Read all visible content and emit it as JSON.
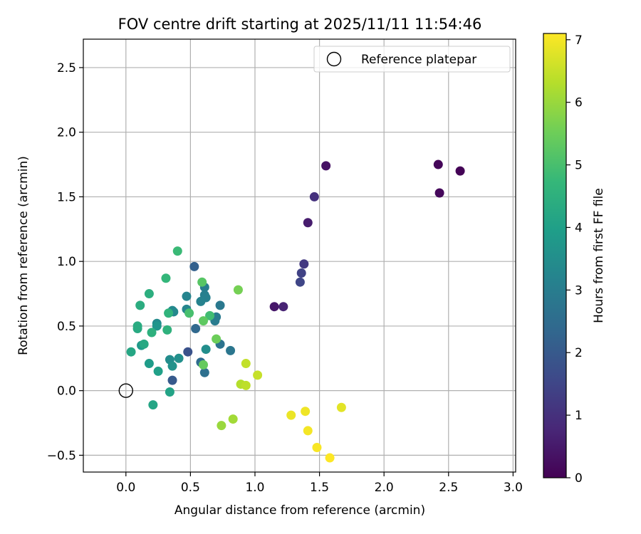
{
  "chart_data": {
    "type": "scatter",
    "title": "FOV centre drift starting at 2025/11/11 11:54:46",
    "xlabel": "Angular distance from reference (arcmin)",
    "ylabel": "Rotation from reference (arcmin)",
    "xlim": [
      -0.33,
      3.02
    ],
    "ylim": [
      -0.63,
      2.72
    ],
    "xticks": [
      0.0,
      0.5,
      1.0,
      1.5,
      2.0,
      2.5,
      3.0
    ],
    "xtick_labels": [
      "0.0",
      "0.5",
      "1.0",
      "1.5",
      "2.0",
      "2.5",
      "3.0"
    ],
    "yticks": [
      -0.5,
      0.0,
      0.5,
      1.0,
      1.5,
      2.0,
      2.5
    ],
    "ytick_labels": [
      "−0.5",
      "0.0",
      "0.5",
      "1.0",
      "1.5",
      "2.0",
      "2.5"
    ],
    "grid": true,
    "legend": {
      "position": "top-right",
      "entries": [
        "Reference platepar"
      ]
    },
    "reference_point": {
      "x": 0.0,
      "y": 0.0,
      "label": "Reference platepar"
    },
    "colorbar": {
      "label": "Hours from first FF file",
      "range": [
        0,
        7.1
      ],
      "ticks": [
        0,
        1,
        2,
        3,
        4,
        5,
        6,
        7
      ],
      "tick_labels": [
        "0",
        "1",
        "2",
        "3",
        "4",
        "5",
        "6",
        "7"
      ],
      "colormap": [
        "#440154",
        "#482878",
        "#3e4989",
        "#31688e",
        "#26828e",
        "#1f9e89",
        "#35b779",
        "#6ece58",
        "#b5de2b",
        "#fde725"
      ]
    },
    "points": [
      {
        "x": 2.59,
        "y": 1.7,
        "c": 0.05
      },
      {
        "x": 2.42,
        "y": 1.75,
        "c": 0.1
      },
      {
        "x": 2.43,
        "y": 1.53,
        "c": 0.15
      },
      {
        "x": 1.55,
        "y": 1.74,
        "c": 0.35
      },
      {
        "x": 1.15,
        "y": 0.65,
        "c": 0.45
      },
      {
        "x": 1.41,
        "y": 1.3,
        "c": 0.55
      },
      {
        "x": 1.22,
        "y": 0.65,
        "c": 0.7
      },
      {
        "x": 1.46,
        "y": 1.5,
        "c": 1.0
      },
      {
        "x": 1.38,
        "y": 0.98,
        "c": 1.2
      },
      {
        "x": 1.36,
        "y": 0.91,
        "c": 1.4
      },
      {
        "x": 1.35,
        "y": 0.84,
        "c": 1.5
      },
      {
        "x": 0.48,
        "y": 0.3,
        "c": 1.8
      },
      {
        "x": 0.36,
        "y": 0.08,
        "c": 2.0
      },
      {
        "x": 0.53,
        "y": 0.96,
        "c": 2.2
      },
      {
        "x": 0.54,
        "y": 0.48,
        "c": 2.4
      },
      {
        "x": 0.58,
        "y": 0.22,
        "c": 2.5
      },
      {
        "x": 0.61,
        "y": 0.14,
        "c": 2.6
      },
      {
        "x": 0.73,
        "y": 0.36,
        "c": 2.7
      },
      {
        "x": 0.81,
        "y": 0.31,
        "c": 2.8
      },
      {
        "x": 0.73,
        "y": 0.66,
        "c": 2.85
      },
      {
        "x": 0.7,
        "y": 0.57,
        "c": 2.9
      },
      {
        "x": 0.69,
        "y": 0.54,
        "c": 2.95
      },
      {
        "x": 0.61,
        "y": 0.8,
        "c": 3.0
      },
      {
        "x": 0.61,
        "y": 0.74,
        "c": 3.05
      },
      {
        "x": 0.62,
        "y": 0.72,
        "c": 3.1
      },
      {
        "x": 0.58,
        "y": 0.69,
        "c": 3.15
      },
      {
        "x": 0.47,
        "y": 0.73,
        "c": 3.2
      },
      {
        "x": 0.47,
        "y": 0.63,
        "c": 3.25
      },
      {
        "x": 0.37,
        "y": 0.61,
        "c": 3.3
      },
      {
        "x": 0.36,
        "y": 0.62,
        "c": 3.35
      },
      {
        "x": 0.24,
        "y": 0.52,
        "c": 3.4
      },
      {
        "x": 0.34,
        "y": 0.24,
        "c": 3.45
      },
      {
        "x": 0.62,
        "y": 0.32,
        "c": 3.5
      },
      {
        "x": 0.41,
        "y": 0.25,
        "c": 3.55
      },
      {
        "x": 0.36,
        "y": 0.19,
        "c": 3.6
      },
      {
        "x": 0.24,
        "y": 0.5,
        "c": 3.7
      },
      {
        "x": 0.12,
        "y": 0.35,
        "c": 3.8
      },
      {
        "x": 0.18,
        "y": 0.21,
        "c": 3.9
      },
      {
        "x": 0.25,
        "y": 0.15,
        "c": 4.0
      },
      {
        "x": 0.34,
        "y": -0.01,
        "c": 4.1
      },
      {
        "x": 0.21,
        "y": -0.11,
        "c": 4.15
      },
      {
        "x": 0.04,
        "y": 0.3,
        "c": 4.2
      },
      {
        "x": 0.14,
        "y": 0.36,
        "c": 4.25
      },
      {
        "x": 0.09,
        "y": 0.48,
        "c": 4.3
      },
      {
        "x": 0.09,
        "y": 0.5,
        "c": 4.35
      },
      {
        "x": 0.11,
        "y": 0.66,
        "c": 4.4
      },
      {
        "x": 0.18,
        "y": 0.75,
        "c": 4.45
      },
      {
        "x": 0.2,
        "y": 0.45,
        "c": 4.5
      },
      {
        "x": 0.32,
        "y": 0.47,
        "c": 4.55
      },
      {
        "x": 0.33,
        "y": 0.6,
        "c": 4.6
      },
      {
        "x": 0.31,
        "y": 0.87,
        "c": 4.7
      },
      {
        "x": 0.4,
        "y": 1.08,
        "c": 4.8
      },
      {
        "x": 0.65,
        "y": 0.58,
        "c": 4.9
      },
      {
        "x": 0.49,
        "y": 0.6,
        "c": 5.0
      },
      {
        "x": 0.59,
        "y": 0.84,
        "c": 5.2
      },
      {
        "x": 0.6,
        "y": 0.54,
        "c": 5.3
      },
      {
        "x": 0.6,
        "y": 0.2,
        "c": 5.4
      },
      {
        "x": 0.7,
        "y": 0.4,
        "c": 5.5
      },
      {
        "x": 0.87,
        "y": 0.78,
        "c": 5.6
      },
      {
        "x": 0.74,
        "y": -0.27,
        "c": 6.0
      },
      {
        "x": 0.83,
        "y": -0.22,
        "c": 6.1
      },
      {
        "x": 0.89,
        "y": 0.05,
        "c": 6.3
      },
      {
        "x": 0.93,
        "y": 0.04,
        "c": 6.4
      },
      {
        "x": 0.93,
        "y": 0.21,
        "c": 6.45
      },
      {
        "x": 1.02,
        "y": 0.12,
        "c": 6.5
      },
      {
        "x": 1.67,
        "y": -0.13,
        "c": 6.8
      },
      {
        "x": 1.28,
        "y": -0.19,
        "c": 6.9
      },
      {
        "x": 1.39,
        "y": -0.16,
        "c": 6.95
      },
      {
        "x": 1.41,
        "y": -0.31,
        "c": 7.0
      },
      {
        "x": 1.48,
        "y": -0.44,
        "c": 7.05
      },
      {
        "x": 1.58,
        "y": -0.52,
        "c": 7.1
      }
    ]
  }
}
